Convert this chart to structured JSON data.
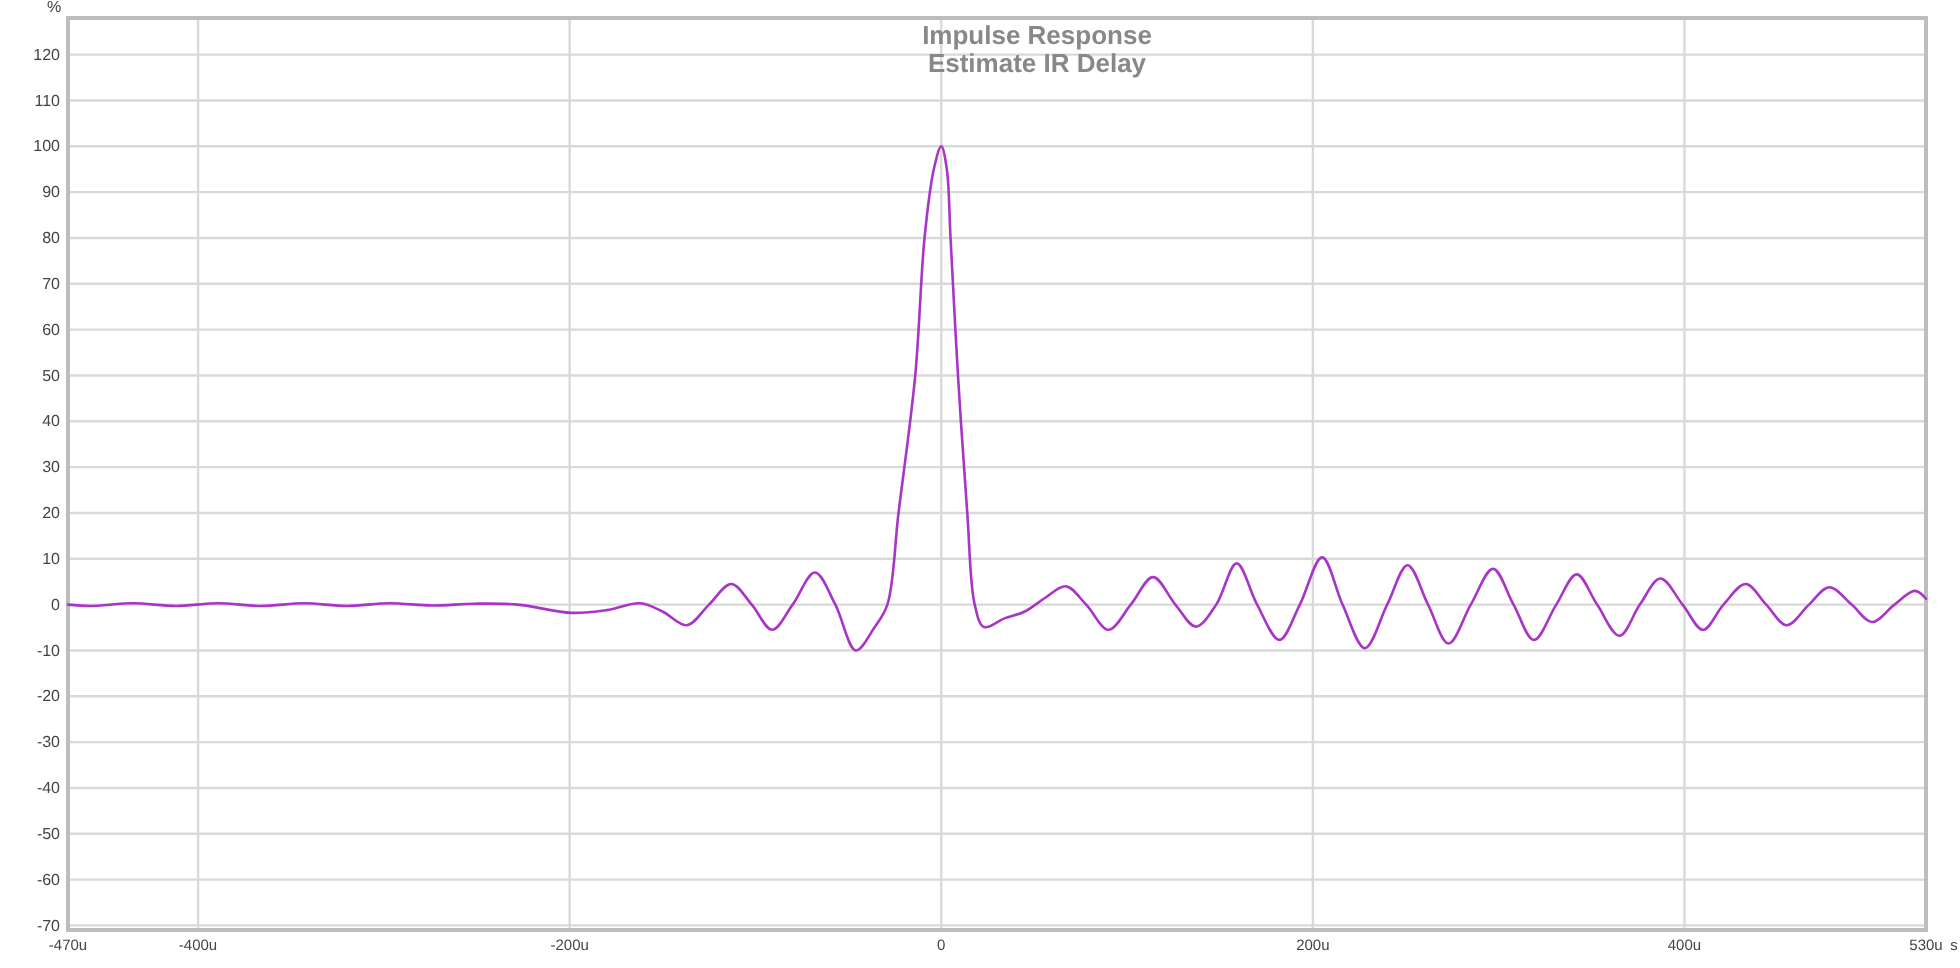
{
  "chart_data": {
    "type": "line",
    "title": "Impulse Response",
    "subtitle": "Estimate IR Delay",
    "xlabel": "s",
    "ylabel": "%",
    "xlim": [
      -470,
      530
    ],
    "ylim": [
      -71,
      128
    ],
    "xticks": [
      {
        "value": -470,
        "label": "-470u"
      },
      {
        "value": -400,
        "label": "-400u"
      },
      {
        "value": -200,
        "label": "-200u"
      },
      0,
      {
        "value": 200,
        "label": "200u"
      },
      {
        "value": 400,
        "label": "400u"
      },
      {
        "value": 530,
        "label": "530u"
      }
    ],
    "yticks": [
      -70,
      -60,
      -50,
      -40,
      -30,
      -20,
      -10,
      0,
      10,
      20,
      30,
      40,
      50,
      60,
      70,
      80,
      90,
      100,
      110,
      120
    ],
    "grid": true,
    "marker": "none",
    "line_style": "solid",
    "x": [
      -470,
      -458,
      -435,
      -412,
      -389,
      -366,
      -343,
      -320,
      -297,
      -274,
      -251,
      -228,
      -199,
      -180,
      -162,
      -150,
      -137,
      -125,
      -113,
      -102,
      -91,
      -80,
      -68,
      -57,
      -46,
      -36,
      -29,
      -23,
      -14,
      -9,
      -4,
      0,
      3,
      5,
      9,
      14,
      18,
      23,
      34,
      45,
      56,
      67,
      78,
      90,
      102,
      114,
      126,
      137,
      148,
      159,
      170,
      182,
      193,
      205,
      216,
      228,
      240,
      251,
      262,
      273,
      285,
      297,
      308,
      319,
      331,
      342,
      353,
      365,
      376,
      387,
      399,
      410,
      421,
      433,
      444,
      455,
      467,
      478,
      490,
      501,
      513,
      524,
      530
    ],
    "series": [
      {
        "color": "#a935c6",
        "values": [
          0,
          -0.3,
          0.3,
          -0.3,
          0.3,
          -0.3,
          0.3,
          -0.3,
          0.3,
          -0.2,
          0.2,
          0,
          -1.8,
          -1.2,
          0.3,
          -1.5,
          -4.5,
          0,
          4.5,
          0,
          -5.5,
          0,
          7,
          0,
          -10,
          -5,
          0,
          20,
          50,
          80,
          95,
          100,
          95,
          80,
          50,
          20,
          0,
          -4.9,
          -3,
          -1.5,
          1.5,
          4,
          0,
          -5.5,
          0,
          6,
          0,
          -4.8,
          0,
          9,
          0,
          -7.7,
          0,
          10.3,
          0,
          -9.5,
          0,
          8.6,
          0,
          -8.5,
          0,
          7.8,
          0,
          -7.7,
          0,
          6.6,
          0,
          -6.8,
          0,
          5.7,
          0,
          -5.5,
          0,
          4.5,
          0,
          -4.5,
          0,
          3.8,
          0,
          -3.8,
          0,
          3,
          1.3
        ]
      }
    ]
  }
}
